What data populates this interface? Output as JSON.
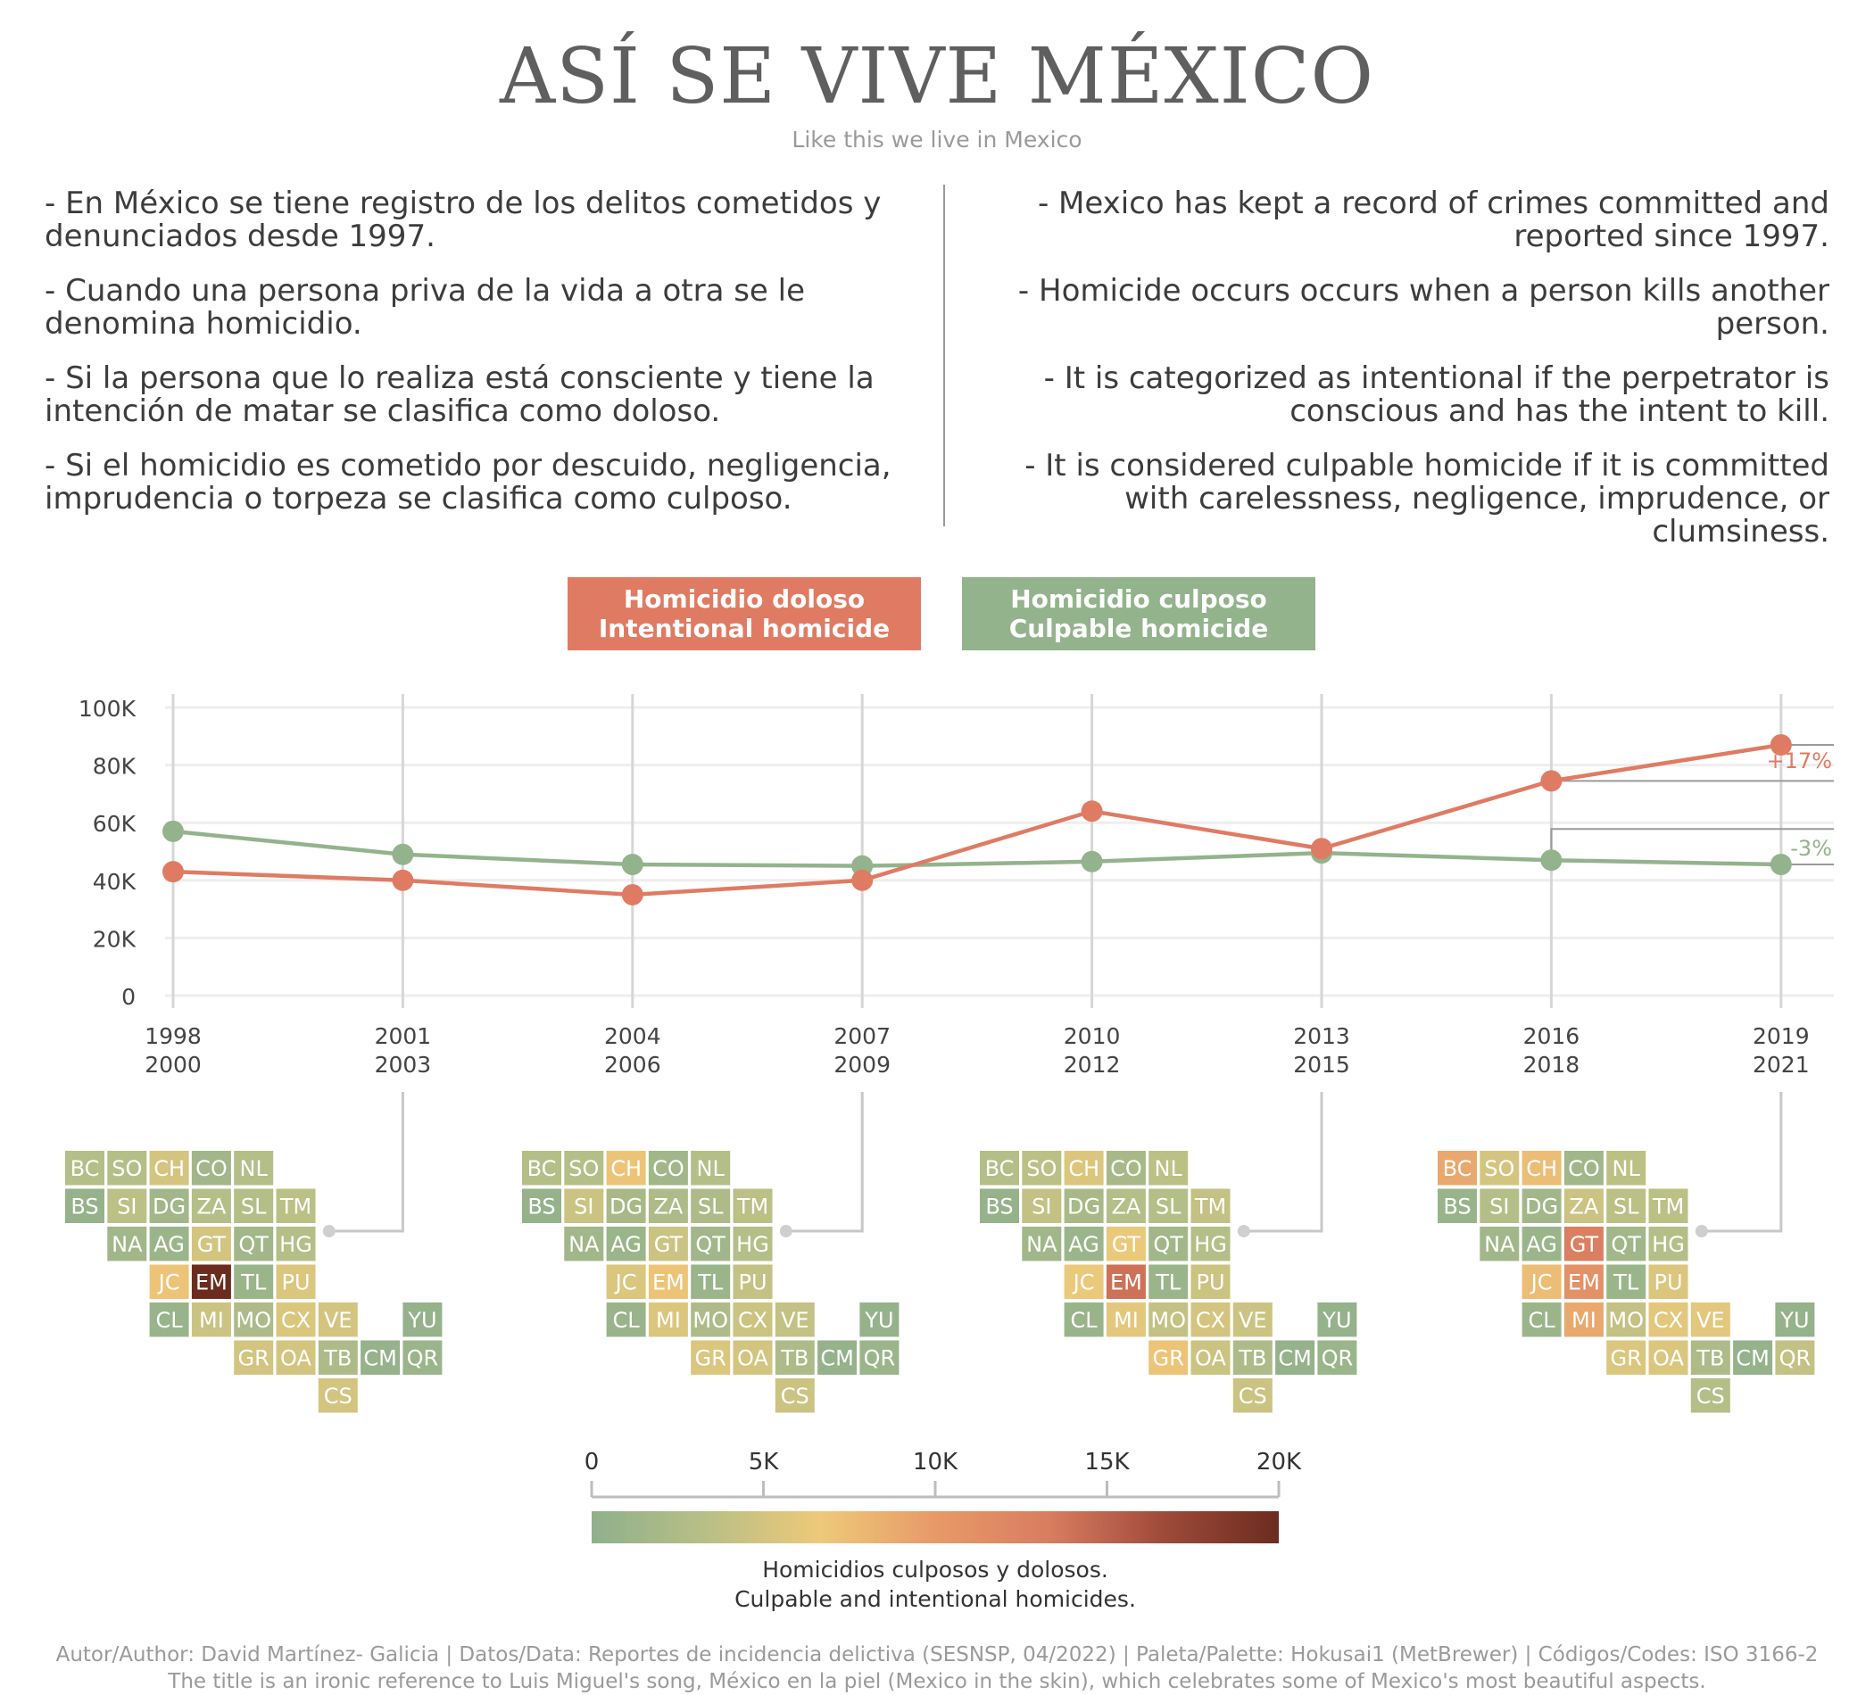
{
  "title": "ASÍ SE VIVE MÉXICO",
  "subtitle": "Like this we live in Mexico",
  "intro_es": [
    "- En México se tiene registro de los delitos cometidos y denunciados desde 1997.",
    "- Cuando una persona priva de la vida a otra se le denomina homicidio.",
    "- Si la persona que lo realiza está consciente y tiene la intención de matar se clasifica como doloso.",
    "- Si el homicidio es cometido por descuido, negligencia, imprudencia o torpeza se clasifica como culposo."
  ],
  "intro_en": [
    "- Mexico has kept a record of crimes committed and reported since 1997.",
    "- Homicide occurs occurs when a person kills another person.",
    "- It is categorized as intentional if the perpetrator is conscious and has the intent to kill.",
    "- It is considered culpable homicide if it is committed with carelessness, negligence, imprudence, or clumsiness."
  ],
  "legend": {
    "intentional_line1": "Homicidio doloso",
    "intentional_line2": "Intentional homicide",
    "culpable_line1": "Homicidio culposo",
    "culpable_line2": "Culpable homicide"
  },
  "colors": {
    "intentional": "#e07b63",
    "culpable": "#93b38c",
    "annotation_line": "#9a9a9a",
    "scale": [
      "#8fb08c",
      "#b8bf86",
      "#eec979",
      "#e79a68",
      "#d97c60",
      "#9e4a3a",
      "#6b2c1f"
    ]
  },
  "chart_data": [
    {
      "type": "line",
      "x": [
        "1998\n2000",
        "2001\n2003",
        "2004\n2006",
        "2007\n2009",
        "2010\n2012",
        "2013\n2015",
        "2016\n2018",
        "2019\n2021"
      ],
      "x_labels_top": [
        "1998",
        "2001",
        "2004",
        "2007",
        "2010",
        "2013",
        "2016",
        "2019"
      ],
      "x_labels_bottom": [
        "2000",
        "2003",
        "2006",
        "2009",
        "2012",
        "2015",
        "2018",
        "2021"
      ],
      "y_ticks": [
        "0",
        "20K",
        "40K",
        "60K",
        "80K",
        "100K"
      ],
      "ylim": [
        0,
        100000
      ],
      "series": [
        {
          "name": "Homicidio doloso / Intentional homicide",
          "values": [
            43000,
            40000,
            35000,
            40000,
            64000,
            51000,
            74500,
            87000
          ]
        },
        {
          "name": "Homicidio culposo / Culpable homicide",
          "values": [
            57000,
            49000,
            45500,
            45000,
            46500,
            49500,
            47000,
            45500
          ]
        }
      ],
      "annotations": [
        {
          "series": 0,
          "text": "+17%"
        },
        {
          "series": 1,
          "text": "-3%"
        }
      ],
      "grid": true
    },
    {
      "type": "heatmap",
      "description_labels": [
        "Homicidios culposos y dolosos.",
        "Culpable and intentional homicides."
      ],
      "scale_ticks": [
        "0",
        "5K",
        "10K",
        "15K",
        "20K"
      ],
      "scale_range": [
        0,
        20000
      ],
      "maps": [
        {
          "period": "2001-2003",
          "states": {
            "BC": 3000,
            "SO": 3000,
            "CH": 5000,
            "CO": 1500,
            "NL": 3000,
            "BS": 500,
            "SI": 3500,
            "DG": 1500,
            "ZA": 3000,
            "SL": 3000,
            "TM": 3500,
            "NA": 1500,
            "AG": 1000,
            "GT": 5000,
            "QT": 1500,
            "HG": 3000,
            "JC": 7000,
            "EM": 20000,
            "TL": 1000,
            "PU": 5500,
            "CL": 800,
            "MI": 4500,
            "MO": 2500,
            "CX": 5500,
            "VE": 5000,
            "YU": 500,
            "GR": 5000,
            "OA": 5000,
            "TB": 2500,
            "CM": 500,
            "QR": 1000,
            "CS": 5000
          }
        },
        {
          "period": "2007-2009",
          "states": {
            "BC": 3000,
            "SO": 3000,
            "CH": 7000,
            "CO": 1500,
            "NL": 3000,
            "BS": 500,
            "SI": 4500,
            "DG": 2000,
            "ZA": 2500,
            "SL": 2500,
            "TM": 3500,
            "NA": 1500,
            "AG": 1000,
            "GT": 4500,
            "QT": 1500,
            "HG": 3000,
            "JC": 5500,
            "EM": 7000,
            "TL": 1000,
            "PU": 4000,
            "CL": 800,
            "MI": 5500,
            "MO": 2500,
            "CX": 4500,
            "VE": 4000,
            "YU": 500,
            "GR": 5500,
            "OA": 5000,
            "TB": 2500,
            "CM": 500,
            "QR": 1000,
            "CS": 4500
          }
        },
        {
          "period": "2013-2015",
          "states": {
            "BC": 3000,
            "SO": 3500,
            "CH": 5500,
            "CO": 2000,
            "NL": 3500,
            "BS": 500,
            "SI": 4000,
            "DG": 2000,
            "ZA": 3000,
            "SL": 3000,
            "TM": 4000,
            "NA": 1500,
            "AG": 1000,
            "GT": 6500,
            "QT": 1500,
            "HG": 3000,
            "JC": 6500,
            "EM": 14000,
            "TL": 1000,
            "PU": 4500,
            "CL": 800,
            "MI": 6000,
            "MO": 4000,
            "CX": 5000,
            "VE": 4500,
            "YU": 500,
            "GR": 7000,
            "OA": 4500,
            "TB": 2500,
            "CM": 500,
            "QR": 1000,
            "CS": 4500
          }
        },
        {
          "period": "2019-2021",
          "states": {
            "BC": 9000,
            "SO": 5000,
            "CH": 7500,
            "CO": 1500,
            "NL": 3500,
            "BS": 800,
            "SI": 3000,
            "DG": 1500,
            "ZA": 4500,
            "SL": 3500,
            "TM": 3500,
            "NA": 1500,
            "AG": 1000,
            "GT": 13000,
            "QT": 1500,
            "HG": 3000,
            "JC": 7500,
            "EM": 11000,
            "TL": 1000,
            "PU": 5500,
            "CL": 1000,
            "MI": 9000,
            "MO": 4000,
            "CX": 6000,
            "VE": 6000,
            "YU": 500,
            "GR": 5500,
            "OA": 5500,
            "TB": 2500,
            "CM": 500,
            "QR": 4000,
            "CS": 3000
          }
        }
      ]
    }
  ],
  "footer": {
    "line1": "Autor/Author: David Martínez- Galicia | Datos/Data: Reportes de incidencia delictiva (SESNSP, 04/2022) | Paleta/Palette: Hokusai1 (MetBrewer) | Códigos/Codes: ISO 3166-2",
    "line2": "The title is an ironic reference to Luis Miguel's song, México en la piel (Mexico in the skin), which celebrates some of Mexico's most beautiful aspects."
  }
}
